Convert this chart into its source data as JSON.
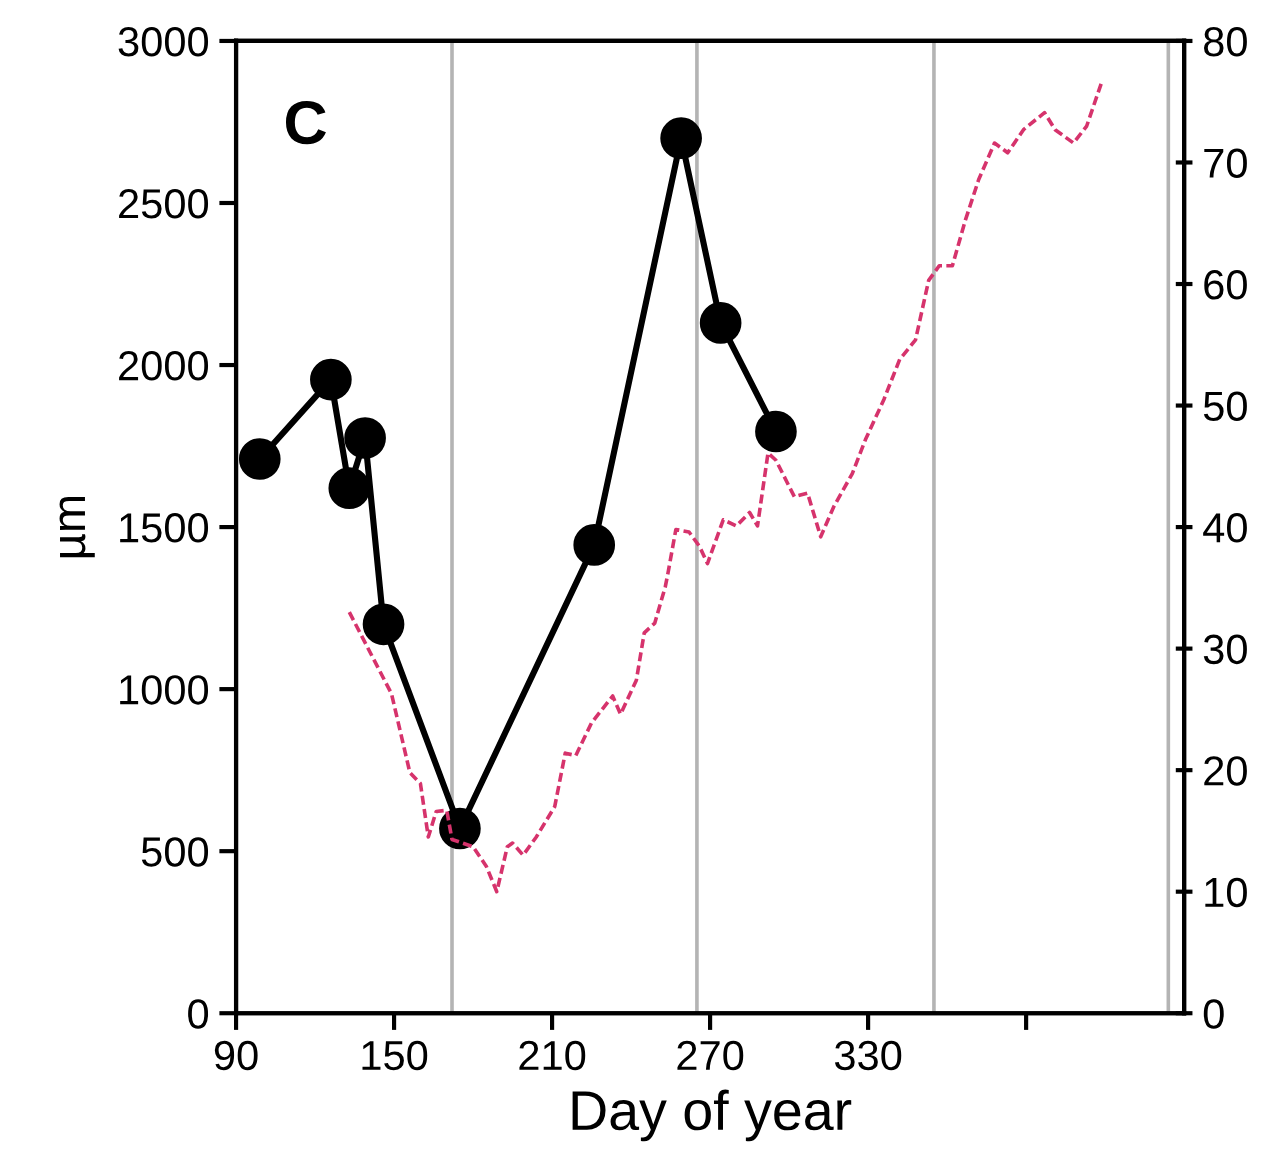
{
  "chart_data": {
    "type": "line",
    "xlabel": "Day of year",
    "ylabel": "µm",
    "annotations": [
      "C"
    ],
    "xlim": [
      90,
      450
    ],
    "xticks": [
      90,
      150,
      210,
      270,
      330,
      {
        "value": 390,
        "label": null
      }
    ],
    "ylim": [
      0,
      3000
    ],
    "yticks": [
      0,
      500,
      1000,
      1500,
      2000,
      2500,
      3000
    ],
    "y2lim": [
      0,
      80
    ],
    "y2ticks": [
      0,
      10,
      20,
      30,
      40,
      50,
      60,
      70,
      80
    ],
    "grid": false,
    "legend": false,
    "ref_lines": [
      {
        "axis": "x",
        "value": 172,
        "color": "#b4b4b4"
      },
      {
        "axis": "x",
        "value": 265,
        "color": "#b4b4b4"
      },
      {
        "axis": "x",
        "value": 355,
        "color": "#b4b4b4"
      },
      {
        "axis": "x",
        "value": 444,
        "color": "#b4b4b4"
      }
    ],
    "series": [
      {
        "color": "#000000",
        "marker": "circle",
        "line_style": "solid",
        "x": [
          99,
          126,
          133,
          139,
          146,
          175,
          226,
          259,
          274,
          295
        ],
        "values": [
          1710,
          1955,
          1620,
          1775,
          1200,
          570,
          1445,
          2700,
          2130,
          1795
        ]
      },
      {
        "color": "#d6336c",
        "axis": "y2",
        "marker": "none",
        "line_style": "dashed",
        "x": [
          133,
          149,
          156,
          160,
          163,
          166,
          170,
          172,
          180,
          185,
          189,
          193,
          195,
          199,
          204,
          211,
          215,
          219,
          225,
          233,
          236,
          242,
          245,
          249,
          253,
          254,
          257,
          262,
          266,
          269,
          275,
          280,
          285,
          288,
          292,
          295,
          302,
          307,
          312,
          317,
          324,
          329,
          336,
          342,
          348,
          353,
          357,
          362,
          367,
          372,
          378,
          383,
          389,
          397,
          401,
          408,
          413,
          419
        ],
        "values": [
          33.0,
          26.3,
          19.8,
          18.9,
          14.5,
          16.6,
          16.7,
          14.3,
          13.7,
          12.1,
          10.0,
          13.7,
          14.0,
          13.0,
          14.5,
          17.0,
          21.4,
          21.2,
          23.9,
          26.1,
          24.6,
          27.4,
          31.3,
          32.1,
          35.1,
          36.2,
          39.8,
          39.6,
          38.4,
          37.0,
          40.6,
          40.1,
          41.2,
          40.1,
          46.1,
          45.5,
          42.5,
          42.8,
          39.2,
          41.7,
          44.4,
          47.2,
          50.5,
          53.8,
          55.4,
          60.3,
          61.5,
          61.5,
          65.3,
          68.6,
          71.6,
          70.8,
          72.7,
          74.1,
          72.7,
          71.6,
          73.0,
          76.8
        ]
      }
    ]
  }
}
